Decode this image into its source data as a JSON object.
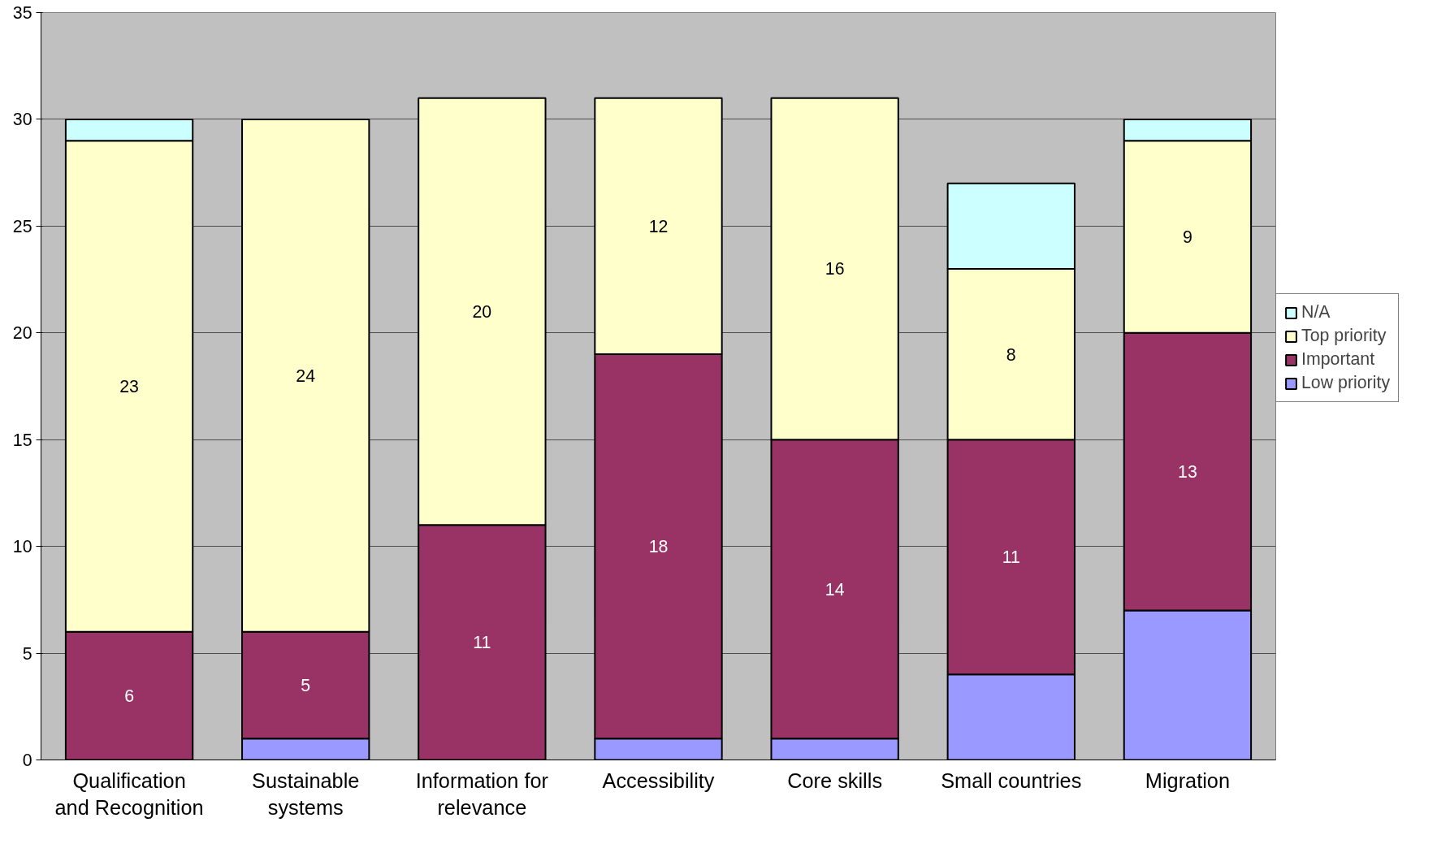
{
  "chart_data": {
    "type": "bar",
    "stacked": true,
    "categories": [
      "Qualification and Recognition",
      "Sustainable systems",
      "Information for relevance",
      "Accessibility",
      "Core skills",
      "Small countries",
      "Migration"
    ],
    "series": [
      {
        "name": "Low priority",
        "color": "#9999ff",
        "values": [
          0,
          1,
          0,
          1,
          1,
          4,
          7
        ],
        "value_labels": [
          null,
          null,
          null,
          null,
          null,
          null,
          null
        ]
      },
      {
        "name": "Important",
        "color": "#993366",
        "values": [
          6,
          5,
          11,
          18,
          14,
          11,
          13
        ],
        "value_labels": [
          "6",
          "5",
          "11",
          "18",
          "14",
          "11",
          "13"
        ]
      },
      {
        "name": "Top priority",
        "color": "#ffffcc",
        "values": [
          23,
          24,
          20,
          12,
          16,
          8,
          9
        ],
        "value_labels": [
          "23",
          "24",
          "20",
          "12",
          "16",
          "8",
          "9"
        ]
      },
      {
        "name": "N/A",
        "color": "#ccffff",
        "values": [
          1,
          0,
          0,
          0,
          0,
          4,
          1
        ],
        "value_labels": [
          null,
          null,
          null,
          null,
          null,
          null,
          null
        ]
      }
    ],
    "ylim": [
      0,
      35
    ],
    "yticks": [
      0,
      5,
      10,
      15,
      20,
      25,
      30,
      35
    ],
    "grid": "y",
    "legend": "right"
  }
}
